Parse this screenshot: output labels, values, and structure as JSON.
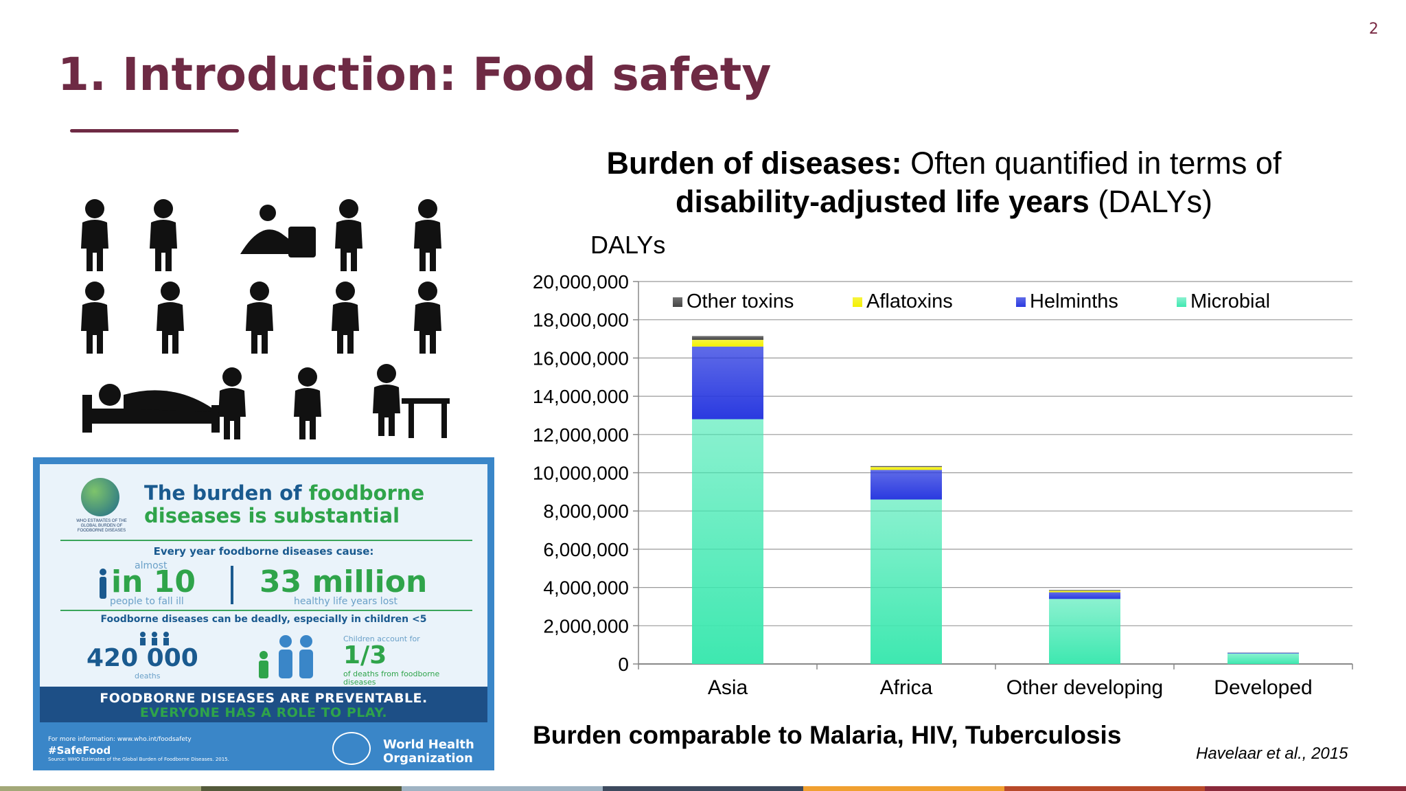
{
  "page_number": "2",
  "title": {
    "bold": "1. Introduction:",
    "rest": " Food safety"
  },
  "chart_heading": {
    "line1_bold": "Burden of diseases:",
    "line1_rest": "  Often quantified in terms of",
    "line2_bold": "disability-adjusted life years",
    "line2_rest": " (DALYs)"
  },
  "chart_data": {
    "type": "bar",
    "stacked": true,
    "ylabel": "DALYs",
    "ylim": [
      0,
      20000000
    ],
    "yticks": [
      "0",
      "2,000,000",
      "4,000,000",
      "6,000,000",
      "8,000,000",
      "10,000,000",
      "12,000,000",
      "14,000,000",
      "16,000,000",
      "18,000,000",
      "20,000,000"
    ],
    "categories": [
      "Asia",
      "Africa",
      "Other developing",
      "Developed"
    ],
    "legend_position": "top",
    "grid": true,
    "series": [
      {
        "name": "Microbial",
        "color": "#3ee8b0",
        "values": [
          12800000,
          8600000,
          3400000,
          550000
        ]
      },
      {
        "name": "Helminths",
        "color": "#2a3ae0",
        "values": [
          3800000,
          1550000,
          350000,
          40000
        ]
      },
      {
        "name": "Aflatoxins",
        "color": "#f4f000",
        "values": [
          350000,
          150000,
          80000,
          5000
        ]
      },
      {
        "name": "Other toxins",
        "color": "#444444",
        "values": [
          200000,
          50000,
          40000,
          5000
        ]
      }
    ]
  },
  "footnote": "Burden comparable to Malaria, HIV, Tuberculosis",
  "citation": "Havelaar et al., 2015",
  "infographic": {
    "title_a": "The burden of ",
    "title_b": "foodborne",
    "title_c": "diseases is substantial",
    "globe_caption": "WHO ESTIMATES OF THE GLOBAL BURDEN OF FOODBORNE DISEASES",
    "every_year": "Every year foodborne diseases cause:",
    "almost": "almost",
    "in10": "in 10",
    "people_to_fall_ill": "people to fall ill",
    "millions": "33 million",
    "healthy_years": "healthy life years lost",
    "deadly": "Foodborne diseases can be deadly, especially in children <5",
    "deaths_num": "420 000",
    "deaths": "deaths",
    "children_account": "Children account for",
    "one_third": "1/3",
    "of_deaths": "of deaths from foodborne diseases",
    "preventable": "FOODBORNE DISEASES ARE PREVENTABLE.",
    "role": "EVERYONE HAS A ROLE TO PLAY.",
    "more_info": "For more information: www.who.int/foodsafety",
    "hashtag": "#SafeFood",
    "source": "Source: WHO Estimates of the Global Burden of Foodborne Diseases. 2015.",
    "who_line1": "World Health",
    "who_line2": "Organization"
  },
  "bottom_strip_colors": [
    "#a3a878",
    "#545a3a",
    "#9fb3c3",
    "#3d4a5e",
    "#f0a030",
    "#b84a2a",
    "#8a2a3a"
  ]
}
